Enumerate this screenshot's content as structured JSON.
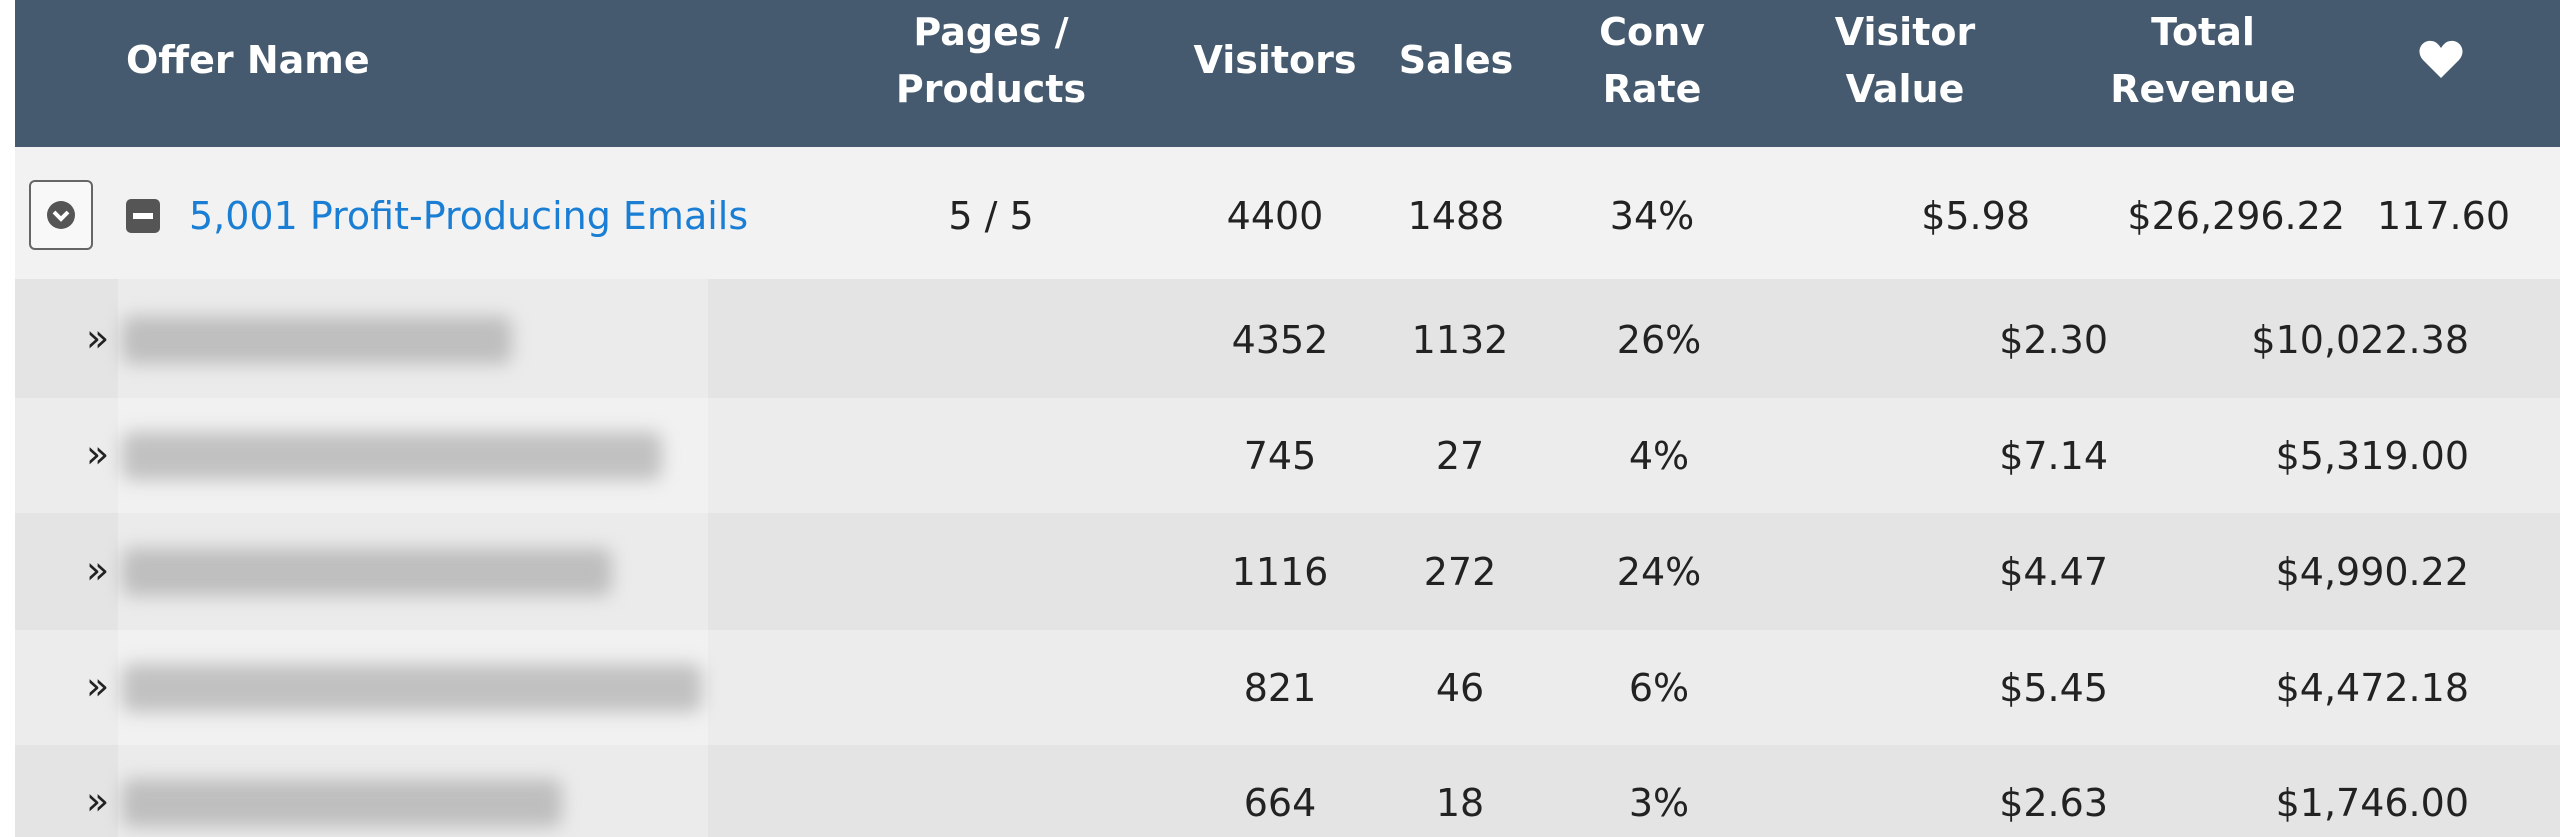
{
  "header": {
    "columns": [
      {
        "lines": [
          "Offer Name"
        ]
      },
      {
        "lines": [
          "Pages /",
          "Products"
        ]
      },
      {
        "lines": [
          "Visitors"
        ]
      },
      {
        "lines": [
          "Sales"
        ]
      },
      {
        "lines": [
          "Conv",
          "Rate"
        ]
      },
      {
        "lines": [
          "Visitor",
          "Value"
        ]
      },
      {
        "lines": [
          "Total",
          "Revenue"
        ]
      }
    ]
  },
  "offer": {
    "name": "5,001 Profit-Producing Emails",
    "pages_products": "5 / 5",
    "visitors": "4400",
    "sales": "1488",
    "conv_rate": "34%",
    "visitor_value": "$5.98",
    "total_revenue": "$26,296.22",
    "score": "117.60"
  },
  "child_marker": "»",
  "children": [
    {
      "visitors": "4352",
      "sales": "1132",
      "conv_rate": "26%",
      "visitor_value": "$2.30",
      "total_revenue": "$10,022.38"
    },
    {
      "visitors": "745",
      "sales": "27",
      "conv_rate": "4%",
      "visitor_value": "$7.14",
      "total_revenue": "$5,319.00"
    },
    {
      "visitors": "1116",
      "sales": "272",
      "conv_rate": "24%",
      "visitor_value": "$4.47",
      "total_revenue": "$4,990.22"
    },
    {
      "visitors": "821",
      "sales": "46",
      "conv_rate": "6%",
      "visitor_value": "$5.45",
      "total_revenue": "$4,472.18"
    },
    {
      "visitors": "664",
      "sales": "18",
      "conv_rate": "3%",
      "visitor_value": "$2.63",
      "total_revenue": "$1,746.00"
    }
  ]
}
